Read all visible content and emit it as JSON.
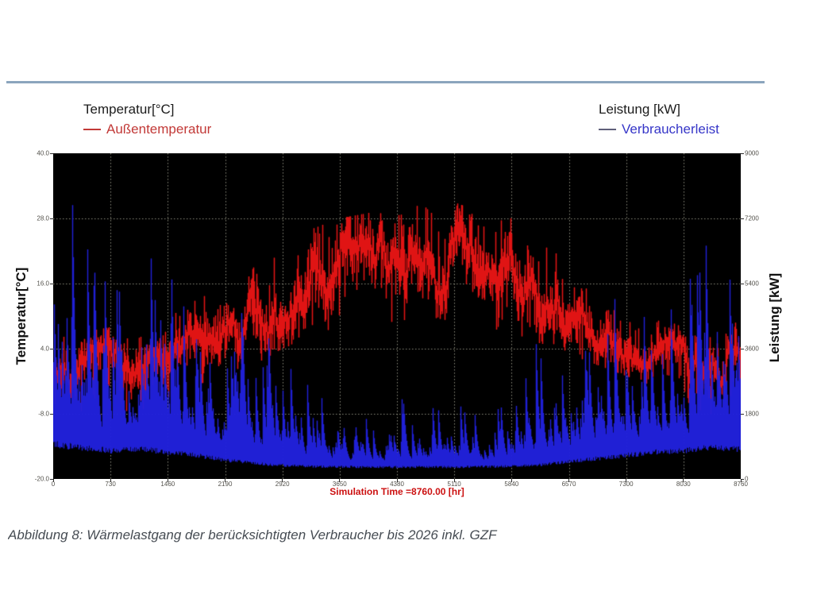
{
  "legend_left": {
    "title": "Temperatur[°C]",
    "entry": "Außentemperatur",
    "color": "#c23937"
  },
  "legend_right": {
    "title": "Leistung [kW]",
    "entry": "Verbraucherleist",
    "color": "#3636c8"
  },
  "caption": "Abbildung 8: Wärmelastgang der berücksichtigten Verbraucher bis 2026 inkl. GZF",
  "rule_color": "#8ba5bd",
  "chart_data": {
    "type": "line",
    "title": "",
    "xlabel": "Simulation Time =8760.00 [hr]",
    "ylabel_left": "Temperatur[°C]",
    "ylabel_right": "Leistung [kW]",
    "background": "#000000",
    "grid": true,
    "grid_color": "#8e8e7e",
    "x_range": [
      0,
      8760
    ],
    "x_ticks": [
      0,
      730,
      1460,
      2190,
      2920,
      3650,
      4380,
      5110,
      5840,
      6570,
      7300,
      8030,
      8760
    ],
    "y_left": {
      "range": [
        -20,
        40
      ],
      "tick_labels": [
        "40.0",
        "28.0",
        "16.0",
        "4.0",
        "-8.0",
        "-20.0"
      ],
      "tick_values": [
        40,
        28,
        16,
        4,
        -8,
        -20
      ]
    },
    "y_right": {
      "range": [
        0,
        9000
      ],
      "tick_labels": [
        "9000",
        "7200",
        "5400",
        "3600",
        "1800",
        "0"
      ],
      "tick_values": [
        9000,
        7200,
        5400,
        3600,
        1800,
        0
      ]
    },
    "series": [
      {
        "name": "Außentemperatur",
        "axis": "left",
        "color": "#e01414",
        "style": "noisy-band",
        "envelope": {
          "x": [
            0,
            365,
            730,
            1095,
            1460,
            1825,
            2190,
            2555,
            2920,
            3285,
            3650,
            4015,
            4380,
            4745,
            5110,
            5475,
            5840,
            6205,
            6570,
            6935,
            7300,
            7665,
            8030,
            8395,
            8760
          ],
          "lo": [
            -8,
            -9,
            -6,
            -12,
            -5,
            -3,
            -1,
            1,
            4,
            6,
            7,
            8,
            9,
            10,
            9,
            8,
            7,
            5,
            3,
            1,
            -1,
            -3,
            -5,
            -10,
            -5
          ],
          "hi": [
            6,
            7,
            8,
            6,
            10,
            13,
            16,
            19,
            22,
            26,
            28,
            29,
            31,
            30,
            31,
            29,
            28,
            25,
            21,
            16,
            13,
            10,
            8,
            6,
            10
          ]
        }
      },
      {
        "name": "Verbraucherleist",
        "axis": "right",
        "color": "#2222dd",
        "style": "noisy-spikes",
        "envelope": {
          "x": [
            0,
            365,
            730,
            1095,
            1460,
            1825,
            2190,
            2555,
            2920,
            3285,
            3650,
            4015,
            4380,
            4745,
            5110,
            5475,
            5840,
            6205,
            6570,
            6935,
            7300,
            7665,
            8030,
            8395,
            8760
          ],
          "lo": [
            1100,
            1000,
            900,
            950,
            850,
            750,
            600,
            500,
            430,
            400,
            390,
            380,
            380,
            380,
            380,
            390,
            400,
            450,
            550,
            650,
            750,
            850,
            900,
            1000,
            950
          ],
          "hi": [
            7600,
            7900,
            6400,
            6800,
            6100,
            5600,
            5200,
            4600,
            4200,
            2600,
            2300,
            1700,
            2200,
            3000,
            2400,
            1700,
            3300,
            3800,
            4300,
            5300,
            5600,
            5800,
            5400,
            7350,
            6600
          ]
        }
      }
    ]
  }
}
